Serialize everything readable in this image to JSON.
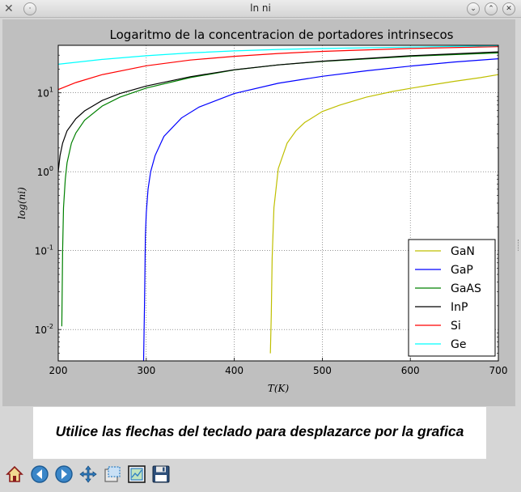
{
  "window": {
    "title": "ln ni",
    "app_icon": "tools-icon",
    "controls": [
      "minimize",
      "maximize",
      "close"
    ]
  },
  "caption": "Utilice las flechas del teclado para desplazarce por la grafica",
  "toolbar": {
    "tools": [
      "home-icon",
      "back-arrow-icon",
      "forward-arrow-icon",
      "pan-move-icon",
      "zoom-rect-icon",
      "subplots-config-icon",
      "save-floppy-icon"
    ]
  },
  "colors": {
    "GaN": "#bfbf00",
    "GaP": "#0000ff",
    "GaAS": "#008000",
    "InP": "#000000",
    "Si": "#ff0000",
    "Ge": "#00ffff",
    "axes_bg": "#ffffff",
    "frame_bg": "#bfbfbf"
  },
  "chart_data": {
    "type": "line",
    "title": "Logaritmo de la concentracion de portadores intrinsecos",
    "xlabel": "T(K)",
    "ylabel": "log(ni)",
    "xlim": [
      200,
      700
    ],
    "ylim": [
      0.004,
      40
    ],
    "yscale": "log",
    "grid": true,
    "legend_position": "lower-right",
    "xticks": [
      "200",
      "300",
      "400",
      "500",
      "600",
      "700"
    ],
    "yticks": [
      {
        "value": 0.01,
        "base": "10",
        "exp": "-2"
      },
      {
        "value": 0.1,
        "base": "10",
        "exp": "-1"
      },
      {
        "value": 1,
        "base": "10",
        "exp": "0"
      },
      {
        "value": 10,
        "base": "10",
        "exp": "1"
      }
    ],
    "series": [
      {
        "name": "GaN",
        "color": "#bfbf00",
        "x": [
          441,
          442,
          443,
          445,
          450,
          460,
          470,
          480,
          500,
          520,
          550,
          580,
          600,
          620,
          650,
          680,
          700
        ],
        "y": [
          0.005,
          0.015,
          0.08,
          0.35,
          1.1,
          2.3,
          3.3,
          4.2,
          5.8,
          7.0,
          8.8,
          10.4,
          11.4,
          12.4,
          14.0,
          15.6,
          17.0
        ]
      },
      {
        "name": "GaP",
        "color": "#0000ff",
        "x": [
          297,
          298,
          299,
          300,
          302,
          305,
          310,
          320,
          340,
          360,
          400,
          450,
          500,
          550,
          600,
          650,
          700
        ],
        "y": [
          0.004,
          0.02,
          0.15,
          0.3,
          0.6,
          1.0,
          1.6,
          2.8,
          4.8,
          6.6,
          9.8,
          13.2,
          16.2,
          19.0,
          21.8,
          24.6,
          27.0
        ]
      },
      {
        "name": "GaAS",
        "color": "#008000",
        "x": [
          204,
          205,
          206,
          208,
          210,
          215,
          220,
          230,
          250,
          270,
          300,
          350,
          400,
          450,
          500,
          600,
          700
        ],
        "y": [
          0.011,
          0.1,
          0.35,
          0.8,
          1.3,
          2.3,
          3.1,
          4.5,
          6.8,
          8.8,
          11.5,
          15.6,
          19.5,
          22.6,
          25.0,
          29.0,
          32.0
        ]
      },
      {
        "name": "InP",
        "color": "#000000",
        "x": [
          200,
          202,
          205,
          210,
          220,
          230,
          250,
          270,
          300,
          350,
          400,
          450,
          500,
          600,
          700
        ],
        "y": [
          1.0,
          1.6,
          2.3,
          3.3,
          4.7,
          5.9,
          8.0,
          9.8,
          12.2,
          16.0,
          19.6,
          22.6,
          25.2,
          29.5,
          33.0
        ]
      },
      {
        "name": "Si",
        "color": "#ff0000",
        "x": [
          200,
          220,
          250,
          300,
          350,
          400,
          450,
          500,
          600,
          700
        ],
        "y": [
          11.0,
          13.5,
          17.0,
          22.0,
          26.0,
          29.0,
          31.5,
          33.5,
          36.5,
          38.5
        ]
      },
      {
        "name": "Ge",
        "color": "#00ffff",
        "x": [
          200,
          250,
          300,
          350,
          400,
          450,
          500,
          600,
          700
        ],
        "y": [
          23.0,
          26.5,
          29.5,
          32.0,
          34.0,
          35.5,
          36.5,
          38.0,
          39.5
        ]
      }
    ]
  }
}
